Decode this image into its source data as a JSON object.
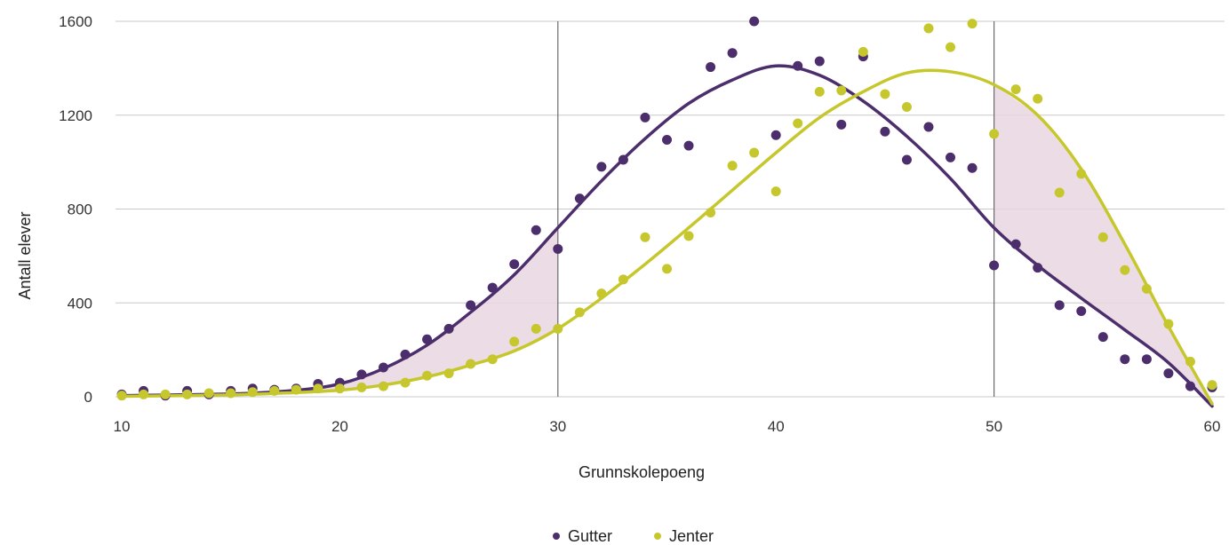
{
  "chart_data": {
    "type": "scatter",
    "title": "",
    "xlabel": "Grunnskolepoeng",
    "ylabel": "Antall elever",
    "xlim": [
      10,
      60
    ],
    "ylim": [
      0,
      1600
    ],
    "xticks": [
      10,
      20,
      30,
      40,
      50,
      60
    ],
    "yticks": [
      0,
      400,
      800,
      1200,
      1600
    ],
    "grid": "horizontal",
    "legend": "bottom-center",
    "reference_lines_x": [
      30,
      50
    ],
    "shaded_ranges_x": [
      [
        10,
        30
      ],
      [
        50,
        60
      ]
    ],
    "colors": {
      "gutter": "#4b2e6b",
      "jenter": "#c6c72d",
      "shade": "#e8d6e2",
      "grid": "#c8c8c8"
    },
    "series": [
      {
        "name": "Gutter",
        "color": "#4b2e6b",
        "points": [
          [
            10,
            10
          ],
          [
            11,
            25
          ],
          [
            12,
            5
          ],
          [
            13,
            25
          ],
          [
            14,
            10
          ],
          [
            15,
            25
          ],
          [
            16,
            35
          ],
          [
            17,
            30
          ],
          [
            18,
            35
          ],
          [
            19,
            55
          ],
          [
            20,
            60
          ],
          [
            21,
            95
          ],
          [
            22,
            125
          ],
          [
            23,
            180
          ],
          [
            24,
            245
          ],
          [
            25,
            290
          ],
          [
            26,
            390
          ],
          [
            27,
            465
          ],
          [
            28,
            565
          ],
          [
            29,
            710
          ],
          [
            30,
            630
          ],
          [
            31,
            845
          ],
          [
            32,
            980
          ],
          [
            33,
            1010
          ],
          [
            34,
            1190
          ],
          [
            35,
            1095
          ],
          [
            36,
            1070
          ],
          [
            37,
            1405
          ],
          [
            38,
            1465
          ],
          [
            39,
            1600
          ],
          [
            40,
            1115
          ],
          [
            41,
            1410
          ],
          [
            42,
            1430
          ],
          [
            43,
            1160
          ],
          [
            44,
            1450
          ],
          [
            45,
            1130
          ],
          [
            46,
            1010
          ],
          [
            47,
            1150
          ],
          [
            48,
            1020
          ],
          [
            49,
            975
          ],
          [
            50,
            560
          ],
          [
            51,
            650
          ],
          [
            52,
            550
          ],
          [
            53,
            390
          ],
          [
            54,
            365
          ],
          [
            55,
            255
          ],
          [
            56,
            160
          ],
          [
            57,
            160
          ],
          [
            58,
            100
          ],
          [
            59,
            45
          ],
          [
            60,
            40
          ]
        ],
        "trend": [
          [
            10,
            5
          ],
          [
            15,
            12
          ],
          [
            18,
            28
          ],
          [
            20,
            55
          ],
          [
            22,
            120
          ],
          [
            24,
            220
          ],
          [
            26,
            360
          ],
          [
            28,
            520
          ],
          [
            30,
            720
          ],
          [
            32,
            920
          ],
          [
            34,
            1100
          ],
          [
            36,
            1250
          ],
          [
            38,
            1350
          ],
          [
            40,
            1410
          ],
          [
            42,
            1370
          ],
          [
            44,
            1260
          ],
          [
            46,
            1110
          ],
          [
            48,
            930
          ],
          [
            50,
            720
          ],
          [
            52,
            560
          ],
          [
            54,
            420
          ],
          [
            56,
            285
          ],
          [
            58,
            145
          ],
          [
            60,
            -40
          ]
        ]
      },
      {
        "name": "Jenter",
        "color": "#c6c72d",
        "points": [
          [
            10,
            5
          ],
          [
            11,
            10
          ],
          [
            12,
            10
          ],
          [
            13,
            10
          ],
          [
            14,
            15
          ],
          [
            15,
            15
          ],
          [
            16,
            20
          ],
          [
            17,
            25
          ],
          [
            18,
            30
          ],
          [
            19,
            35
          ],
          [
            20,
            35
          ],
          [
            21,
            40
          ],
          [
            22,
            45
          ],
          [
            23,
            60
          ],
          [
            24,
            90
          ],
          [
            25,
            100
          ],
          [
            26,
            140
          ],
          [
            27,
            160
          ],
          [
            28,
            235
          ],
          [
            29,
            290
          ],
          [
            30,
            290
          ],
          [
            31,
            360
          ],
          [
            32,
            440
          ],
          [
            33,
            500
          ],
          [
            34,
            680
          ],
          [
            35,
            545
          ],
          [
            36,
            685
          ],
          [
            37,
            785
          ],
          [
            38,
            985
          ],
          [
            39,
            1040
          ],
          [
            40,
            875
          ],
          [
            41,
            1165
          ],
          [
            42,
            1300
          ],
          [
            43,
            1305
          ],
          [
            44,
            1470
          ],
          [
            45,
            1290
          ],
          [
            46,
            1235
          ],
          [
            47,
            1570
          ],
          [
            48,
            1490
          ],
          [
            49,
            1590
          ],
          [
            50,
            1120
          ],
          [
            51,
            1310
          ],
          [
            52,
            1270
          ],
          [
            53,
            870
          ],
          [
            54,
            950
          ],
          [
            55,
            680
          ],
          [
            56,
            540
          ],
          [
            57,
            460
          ],
          [
            58,
            310
          ],
          [
            59,
            150
          ],
          [
            60,
            50
          ]
        ],
        "trend": [
          [
            10,
            2
          ],
          [
            15,
            8
          ],
          [
            18,
            18
          ],
          [
            20,
            28
          ],
          [
            22,
            50
          ],
          [
            24,
            85
          ],
          [
            26,
            135
          ],
          [
            28,
            195
          ],
          [
            30,
            290
          ],
          [
            32,
            420
          ],
          [
            34,
            565
          ],
          [
            36,
            720
          ],
          [
            38,
            880
          ],
          [
            40,
            1040
          ],
          [
            42,
            1190
          ],
          [
            44,
            1300
          ],
          [
            46,
            1380
          ],
          [
            48,
            1385
          ],
          [
            50,
            1330
          ],
          [
            52,
            1200
          ],
          [
            54,
            970
          ],
          [
            56,
            650
          ],
          [
            58,
            300
          ],
          [
            60,
            -30
          ]
        ]
      }
    ]
  }
}
